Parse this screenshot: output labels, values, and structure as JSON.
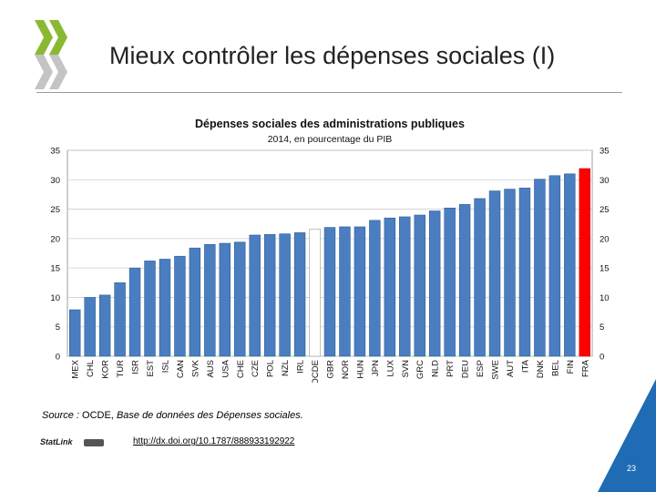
{
  "slide": {
    "title": "Mieux contrôler les dépenses sociales (I)",
    "page_number": "23",
    "source_label": "Source :",
    "source_org": "OCDE,",
    "source_db": "Base de données des Dépenses sociales.",
    "statlink_label": "StatLink",
    "link": "http://dx.doi.org/10.1787/888933192922",
    "colors": {
      "logo": "#8bb832",
      "corner": "#1f6cb4",
      "bar": "#4a7ec0",
      "highlight": "#ff0000",
      "oecd": "#ffffff"
    }
  },
  "chart_data": {
    "type": "bar",
    "title": "Dépenses sociales des administrations publiques",
    "subtitle": "2014, en pourcentage du PIB",
    "xlabel": "",
    "ylabel": "",
    "ylim": [
      0,
      35
    ],
    "yticks": [
      "0",
      "5",
      "10",
      "15",
      "20",
      "25",
      "30",
      "35"
    ],
    "grid": true,
    "categories": [
      "MEX",
      "CHL",
      "KOR",
      "TUR",
      "ISR",
      "EST",
      "ISL",
      "CAN",
      "SVK",
      "AUS",
      "USA",
      "CHE",
      "CZE",
      "POL",
      "NZL",
      "IRL",
      "OCDE",
      "GBR",
      "NOR",
      "HUN",
      "JPN",
      "LUX",
      "SVN",
      "GRC",
      "NLD",
      "PRT",
      "DEU",
      "ESP",
      "SWE",
      "AUT",
      "ITA",
      "DNK",
      "BEL",
      "FIN",
      "FRA"
    ],
    "values": [
      7.9,
      10.0,
      10.4,
      12.5,
      15.0,
      16.2,
      16.5,
      17.0,
      18.4,
      19.0,
      19.2,
      19.4,
      20.6,
      20.7,
      20.8,
      21.0,
      21.6,
      21.9,
      22.0,
      22.0,
      23.1,
      23.5,
      23.7,
      24.0,
      24.7,
      25.2,
      25.8,
      26.8,
      28.1,
      28.4,
      28.6,
      30.1,
      30.7,
      31.0,
      31.9
    ],
    "highlight": "FRA",
    "reference": "OCDE"
  }
}
